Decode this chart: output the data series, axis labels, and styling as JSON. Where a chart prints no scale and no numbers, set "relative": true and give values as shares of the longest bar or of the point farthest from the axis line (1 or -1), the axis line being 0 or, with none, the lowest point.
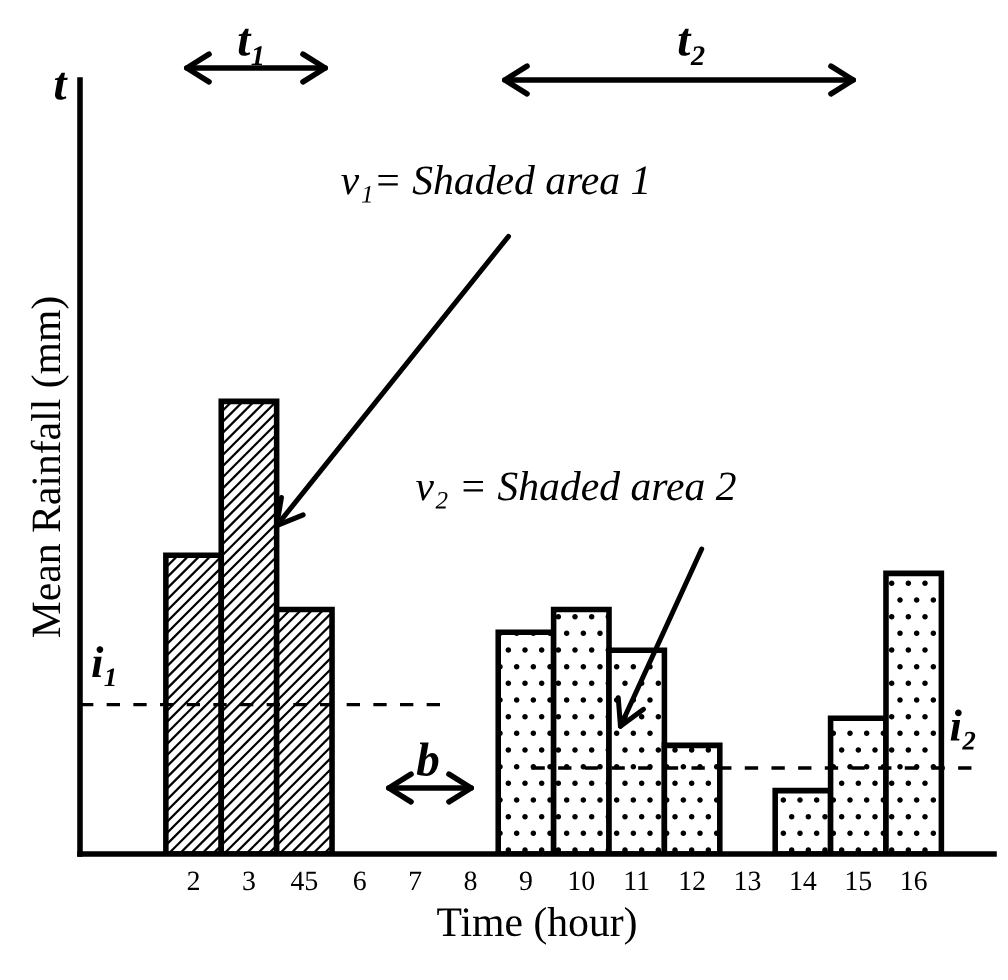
{
  "chart_data": {
    "type": "bar",
    "relative": true,
    "xlabel": "Time (hour)",
    "ylabel": "Mean Rainfall (mm)",
    "categories": [
      "2",
      "3",
      "45",
      "6",
      "7",
      "8",
      "9",
      "10",
      "11",
      "12",
      "13",
      "14",
      "15",
      "16"
    ],
    "series": [
      {
        "color": "#000000",
        "values": [
          0.66,
          1,
          0.54,
          null,
          null,
          null,
          null,
          null,
          null,
          null,
          null,
          null,
          null,
          null
        ]
      },
      {
        "color": "#000000",
        "values": [
          null,
          null,
          null,
          null,
          null,
          null,
          0.49,
          0.54,
          0.45,
          0.24,
          null,
          0.14,
          0.3,
          0.62
        ]
      }
    ],
    "ref_lines": [
      {
        "axis": "y",
        "value": 0.33,
        "label": "i₁",
        "line_style": "dashed",
        "color": "#000000"
      },
      {
        "axis": "y",
        "value": 0.19,
        "label": "i₂",
        "line_style": "dashed",
        "color": "#000000"
      }
    ],
    "annotations": [
      "t",
      "t₁",
      "t₂",
      "b",
      "v₁= Shaded area 1",
      "v₂ = Shaded area 2"
    ]
  }
}
